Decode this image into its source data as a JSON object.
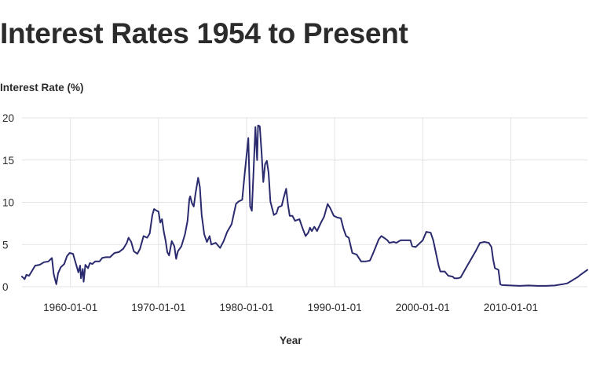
{
  "chart_data": {
    "type": "line",
    "title": "Interest Rates 1954 to Present",
    "ylabel": "Interest Rate (%)",
    "xlabel": "Year",
    "ylim": [
      0,
      20
    ],
    "xlim": [
      1954.5,
      2018.7
    ],
    "yticks": [
      0,
      5,
      10,
      15,
      20
    ],
    "xticks": [
      {
        "label": "1960-01-01",
        "value": 1960
      },
      {
        "label": "1970-01-01",
        "value": 1970
      },
      {
        "label": "1980-01-01",
        "value": 1980
      },
      {
        "label": "1990-01-01",
        "value": 1990
      },
      {
        "label": "2000-01-01",
        "value": 2000
      },
      {
        "label": "2010-01-01",
        "value": 2010
      }
    ],
    "grid": true,
    "line_color": "#2a2a6e",
    "series": [
      {
        "points": [
          [
            1954.5,
            1.2
          ],
          [
            1954.8,
            0.9
          ],
          [
            1955.0,
            1.4
          ],
          [
            1955.3,
            1.3
          ],
          [
            1955.6,
            1.8
          ],
          [
            1956.0,
            2.5
          ],
          [
            1956.5,
            2.6
          ],
          [
            1957.0,
            2.9
          ],
          [
            1957.5,
            3.0
          ],
          [
            1957.9,
            3.4
          ],
          [
            1958.1,
            1.5
          ],
          [
            1958.3,
            0.7
          ],
          [
            1958.4,
            0.3
          ],
          [
            1958.6,
            1.6
          ],
          [
            1958.9,
            2.3
          ],
          [
            1959.3,
            2.7
          ],
          [
            1959.6,
            3.6
          ],
          [
            1959.9,
            4.0
          ],
          [
            1960.3,
            3.9
          ],
          [
            1960.6,
            2.8
          ],
          [
            1960.9,
            1.7
          ],
          [
            1961.1,
            2.5
          ],
          [
            1961.2,
            1.0
          ],
          [
            1961.4,
            2.1
          ],
          [
            1961.5,
            0.6
          ],
          [
            1961.7,
            2.6
          ],
          [
            1962.0,
            2.2
          ],
          [
            1962.2,
            2.8
          ],
          [
            1962.5,
            2.7
          ],
          [
            1962.8,
            3.0
          ],
          [
            1963.3,
            3.0
          ],
          [
            1963.6,
            3.4
          ],
          [
            1964.0,
            3.5
          ],
          [
            1964.5,
            3.5
          ],
          [
            1965.0,
            4.0
          ],
          [
            1965.5,
            4.1
          ],
          [
            1966.0,
            4.5
          ],
          [
            1966.4,
            5.2
          ],
          [
            1966.6,
            5.8
          ],
          [
            1966.9,
            5.3
          ],
          [
            1967.2,
            4.2
          ],
          [
            1967.6,
            3.9
          ],
          [
            1967.9,
            4.5
          ],
          [
            1968.3,
            6.0
          ],
          [
            1968.7,
            5.8
          ],
          [
            1969.0,
            6.3
          ],
          [
            1969.3,
            8.5
          ],
          [
            1969.5,
            9.2
          ],
          [
            1969.8,
            9.0
          ],
          [
            1970.0,
            8.9
          ],
          [
            1970.2,
            7.6
          ],
          [
            1970.4,
            8.0
          ],
          [
            1970.6,
            6.5
          ],
          [
            1970.8,
            5.5
          ],
          [
            1971.0,
            4.1
          ],
          [
            1971.2,
            3.7
          ],
          [
            1971.5,
            5.4
          ],
          [
            1971.8,
            4.8
          ],
          [
            1972.0,
            3.3
          ],
          [
            1972.2,
            4.2
          ],
          [
            1972.6,
            4.8
          ],
          [
            1973.0,
            6.2
          ],
          [
            1973.3,
            7.8
          ],
          [
            1973.5,
            10.4
          ],
          [
            1973.6,
            10.7
          ],
          [
            1973.8,
            9.9
          ],
          [
            1974.0,
            9.5
          ],
          [
            1974.2,
            11.0
          ],
          [
            1974.5,
            12.9
          ],
          [
            1974.7,
            11.8
          ],
          [
            1974.9,
            8.5
          ],
          [
            1975.2,
            6.2
          ],
          [
            1975.5,
            5.3
          ],
          [
            1975.8,
            6.0
          ],
          [
            1976.0,
            5.0
          ],
          [
            1976.5,
            5.2
          ],
          [
            1977.0,
            4.6
          ],
          [
            1977.4,
            5.4
          ],
          [
            1977.8,
            6.5
          ],
          [
            1978.3,
            7.4
          ],
          [
            1978.8,
            9.8
          ],
          [
            1979.1,
            10.1
          ],
          [
            1979.5,
            10.3
          ],
          [
            1979.8,
            13.5
          ],
          [
            1980.2,
            17.6
          ],
          [
            1980.4,
            9.5
          ],
          [
            1980.6,
            9.0
          ],
          [
            1980.8,
            14.0
          ],
          [
            1981.0,
            18.9
          ],
          [
            1981.2,
            15.0
          ],
          [
            1981.3,
            19.1
          ],
          [
            1981.5,
            19.0
          ],
          [
            1981.7,
            16.0
          ],
          [
            1981.9,
            12.4
          ],
          [
            1982.1,
            14.5
          ],
          [
            1982.3,
            14.9
          ],
          [
            1982.5,
            13.5
          ],
          [
            1982.7,
            10.1
          ],
          [
            1983.1,
            8.5
          ],
          [
            1983.4,
            8.7
          ],
          [
            1983.6,
            9.4
          ],
          [
            1984.0,
            9.6
          ],
          [
            1984.2,
            10.5
          ],
          [
            1984.5,
            11.6
          ],
          [
            1984.7,
            9.7
          ],
          [
            1984.9,
            8.4
          ],
          [
            1985.2,
            8.4
          ],
          [
            1985.5,
            7.8
          ],
          [
            1986.0,
            8.0
          ],
          [
            1986.3,
            7.1
          ],
          [
            1986.7,
            6.0
          ],
          [
            1987.0,
            6.4
          ],
          [
            1987.2,
            7.0
          ],
          [
            1987.4,
            6.6
          ],
          [
            1987.7,
            7.1
          ],
          [
            1988.0,
            6.6
          ],
          [
            1988.4,
            7.5
          ],
          [
            1988.8,
            8.3
          ],
          [
            1989.2,
            9.8
          ],
          [
            1989.5,
            9.3
          ],
          [
            1989.9,
            8.4
          ],
          [
            1990.3,
            8.2
          ],
          [
            1990.7,
            8.1
          ],
          [
            1991.0,
            6.9
          ],
          [
            1991.3,
            6.0
          ],
          [
            1991.6,
            5.8
          ],
          [
            1992.0,
            4.0
          ],
          [
            1992.5,
            3.8
          ],
          [
            1993.0,
            3.0
          ],
          [
            1993.5,
            3.0
          ],
          [
            1994.0,
            3.1
          ],
          [
            1994.3,
            3.8
          ],
          [
            1994.7,
            4.8
          ],
          [
            1995.0,
            5.6
          ],
          [
            1995.3,
            6.0
          ],
          [
            1995.6,
            5.8
          ],
          [
            1996.0,
            5.5
          ],
          [
            1996.2,
            5.2
          ],
          [
            1996.7,
            5.3
          ],
          [
            1997.0,
            5.2
          ],
          [
            1997.5,
            5.5
          ],
          [
            1998.0,
            5.5
          ],
          [
            1998.6,
            5.5
          ],
          [
            1998.8,
            4.8
          ],
          [
            1999.2,
            4.7
          ],
          [
            1999.6,
            5.1
          ],
          [
            2000.0,
            5.5
          ],
          [
            2000.4,
            6.5
          ],
          [
            2000.9,
            6.4
          ],
          [
            2001.2,
            5.5
          ],
          [
            2001.5,
            4.0
          ],
          [
            2001.8,
            2.5
          ],
          [
            2002.0,
            1.8
          ],
          [
            2002.5,
            1.8
          ],
          [
            2002.9,
            1.3
          ],
          [
            2003.4,
            1.2
          ],
          [
            2003.6,
            1.0
          ],
          [
            2004.0,
            1.0
          ],
          [
            2004.3,
            1.1
          ],
          [
            2005.0,
            2.4
          ],
          [
            2006.0,
            4.2
          ],
          [
            2006.5,
            5.2
          ],
          [
            2007.0,
            5.3
          ],
          [
            2007.5,
            5.2
          ],
          [
            2007.8,
            4.7
          ],
          [
            2008.0,
            3.2
          ],
          [
            2008.2,
            2.2
          ],
          [
            2008.6,
            2.0
          ],
          [
            2008.8,
            0.3
          ],
          [
            2009.0,
            0.2
          ],
          [
            2010.0,
            0.15
          ],
          [
            2011.0,
            0.1
          ],
          [
            2012.0,
            0.15
          ],
          [
            2013.0,
            0.1
          ],
          [
            2014.0,
            0.1
          ],
          [
            2015.0,
            0.15
          ],
          [
            2015.9,
            0.3
          ],
          [
            2016.4,
            0.4
          ],
          [
            2016.9,
            0.7
          ],
          [
            2017.2,
            0.9
          ],
          [
            2017.6,
            1.15
          ],
          [
            2017.9,
            1.4
          ],
          [
            2018.3,
            1.7
          ],
          [
            2018.7,
            2.0
          ]
        ]
      }
    ]
  }
}
